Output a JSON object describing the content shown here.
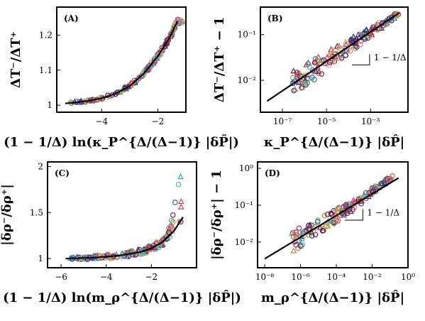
{
  "chart_data": [
    {
      "panel": "(A)",
      "type": "scatter",
      "scale": {
        "x": "linear",
        "y": "linear"
      },
      "xlabel": "(1 − 1/Δ) ln(κ_P^{Δ/(Δ−1)} |δP̂|)",
      "ylabel": "ΔT⁻/ΔT⁺",
      "xlim": [
        -5.6,
        -1.0
      ],
      "ylim": [
        0.98,
        1.28
      ],
      "xticks": [
        {
          "v": -4,
          "label": "−4"
        },
        {
          "v": -2,
          "label": "−2"
        }
      ],
      "yticks": [
        {
          "v": 1.0,
          "label": "1"
        },
        {
          "v": 1.1,
          "label": "1.1"
        },
        {
          "v": 1.2,
          "label": "1.2"
        }
      ],
      "points_x_range": [
        -5.1,
        -1.1
      ],
      "theory_curve": {
        "x": [
          -5.3,
          -4.5,
          -4.0,
          -3.5,
          -3.0,
          -2.5,
          -2.0,
          -1.6,
          -1.3
        ],
        "y": [
          1.005,
          1.012,
          1.02,
          1.033,
          1.055,
          1.09,
          1.14,
          1.19,
          1.24
        ]
      }
    },
    {
      "panel": "(B)",
      "type": "scatter",
      "scale": {
        "x": "log",
        "y": "log"
      },
      "xlabel": "κ_P^{Δ/(Δ−1)} |δP̂|",
      "ylabel": "ΔT⁻/ΔT⁺ − 1",
      "xlim": [
        1e-08,
        0.05
      ],
      "ylim": [
        0.002,
        0.4
      ],
      "xticks": [
        {
          "v": 1e-07,
          "label": "10⁻⁷"
        },
        {
          "v": 1e-05,
          "label": "10⁻⁵"
        },
        {
          "v": 0.001,
          "label": "10⁻³"
        }
      ],
      "yticks": [
        {
          "v": 0.01,
          "label": "10⁻²"
        },
        {
          "v": 0.1,
          "label": "10⁻¹"
        }
      ],
      "slope_annotation": "1 − 1/Δ",
      "points_x_range": [
        3e-07,
        0.02
      ],
      "theory_curve": {
        "x": [
          2e-08,
          0.02
        ],
        "y": [
          0.0035,
          0.3
        ]
      }
    },
    {
      "panel": "(C)",
      "type": "scatter",
      "scale": {
        "x": "linear",
        "y": "linear"
      },
      "xlabel": "(1 − 1/Δ) ln(m_ρ^{Δ/(Δ−1)} |δP̂|)",
      "ylabel": "|δρ⁻/δρ⁺|",
      "xlim": [
        -6.6,
        0.0
      ],
      "ylim": [
        0.9,
        2.05
      ],
      "xticks": [
        {
          "v": -6,
          "label": "−6"
        },
        {
          "v": -4,
          "label": "−4"
        },
        {
          "v": -2,
          "label": "−2"
        }
      ],
      "yticks": [
        {
          "v": 1.0,
          "label": "1"
        },
        {
          "v": 1.5,
          "label": "1.5"
        },
        {
          "v": 2.0,
          "label": "2"
        }
      ],
      "points_x_range": [
        -5.6,
        -0.6
      ],
      "theory_curve": {
        "x": [
          -5.8,
          -4.5,
          -3.5,
          -2.5,
          -2.0,
          -1.5,
          -1.0,
          -0.6
        ],
        "y": [
          1.0,
          1.01,
          1.03,
          1.07,
          1.11,
          1.18,
          1.3,
          1.45
        ]
      }
    },
    {
      "panel": "(D)",
      "type": "scatter",
      "scale": {
        "x": "log",
        "y": "log"
      },
      "xlabel": "m_ρ^{Δ/(Δ−1)} |δP̂|",
      "ylabel": "|δρ⁻/δρ⁺| − 1",
      "xlim": [
        4e-09,
        1.0
      ],
      "ylim": [
        0.002,
        1.5
      ],
      "xticks": [
        {
          "v": 1e-08,
          "label": "10⁻⁸"
        },
        {
          "v": 1e-06,
          "label": "10⁻⁶"
        },
        {
          "v": 0.0001,
          "label": "10⁻⁴"
        },
        {
          "v": 0.01,
          "label": "10⁻²"
        },
        {
          "v": 1,
          "label": "10⁰"
        }
      ],
      "yticks": [
        {
          "v": 0.01,
          "label": "10⁻²"
        },
        {
          "v": 0.1,
          "label": "10⁻¹"
        },
        {
          "v": 1,
          "label": "10⁰"
        }
      ],
      "slope_annotation": "1 − 1/Δ",
      "points_x_range": [
        3e-07,
        0.15
      ],
      "theory_curve": {
        "x": [
          1e-08,
          0.3
        ],
        "y": [
          0.0035,
          0.55
        ]
      }
    }
  ],
  "marker_colors": [
    "#2b2f6e",
    "#3b6ea8",
    "#4a9fb5",
    "#5fb59a",
    "#9a9a3a",
    "#c87a5a",
    "#e37e7e",
    "#f2a07a",
    "#a03060",
    "#7a1a4a",
    "#4b2b6b",
    "#d04060"
  ],
  "colors": {
    "axes": "#000000",
    "theory": "#000000",
    "background": "#ffffff"
  }
}
